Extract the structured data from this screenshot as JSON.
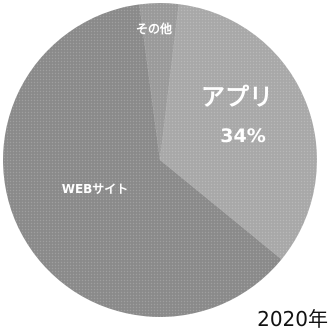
{
  "chart_data": {
    "type": "pie",
    "title": "",
    "period": "2020年",
    "slices": [
      {
        "label": "アプリ",
        "value": 34,
        "value_label": "34%",
        "color": "#a8a8a8"
      },
      {
        "label": "WEBサイト",
        "value": 62,
        "color": "#8a8a8a"
      },
      {
        "label": "その他",
        "value": 4,
        "color": "#9a9a9a"
      }
    ],
    "legend": "none"
  }
}
